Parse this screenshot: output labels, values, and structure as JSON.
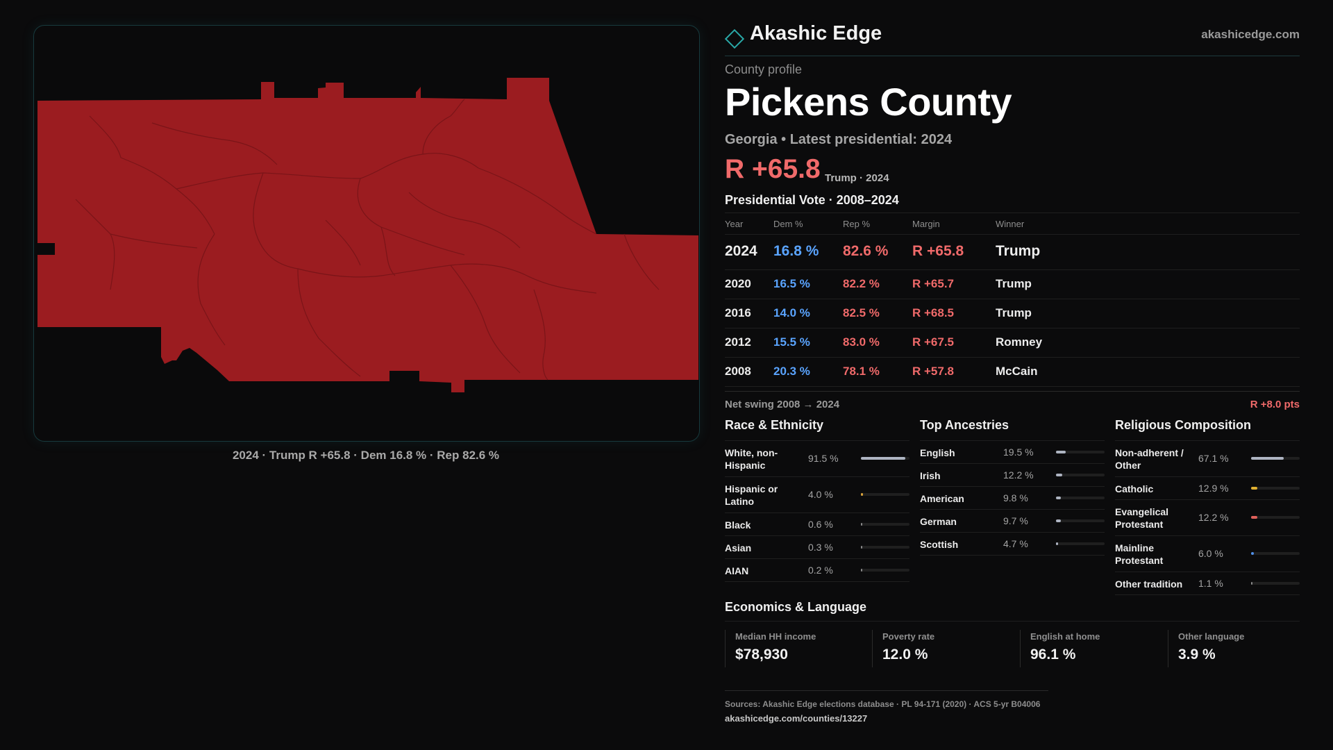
{
  "map": {
    "caption": "2024 · Trump R +65.8 · Dem 16.8 % · Rep 82.6 %",
    "fill_color": "#9b1c20"
  },
  "brand": {
    "name": "Akashic Edge",
    "url": "akashicedge.com",
    "accent": "#2aa9a8"
  },
  "profile": {
    "eyebrow": "County profile",
    "title": "Pickens County",
    "subtitle": "Georgia • Latest presidential: 2024",
    "margin": "R +65.8",
    "margin_note": "Trump · 2024"
  },
  "vote": {
    "title": "Presidential Vote · 2008–2024",
    "headers": {
      "year": "Year",
      "dem": "Dem %",
      "rep": "Rep %",
      "margin": "Margin",
      "winner": "Winner"
    },
    "rows": [
      {
        "year": "2024",
        "dem": "16.8 %",
        "rep": "82.6 %",
        "margin": "R +65.8",
        "winner": "Trump"
      },
      {
        "year": "2020",
        "dem": "16.5 %",
        "rep": "82.2 %",
        "margin": "R +65.7",
        "winner": "Trump"
      },
      {
        "year": "2016",
        "dem": "14.0 %",
        "rep": "82.5 %",
        "margin": "R +68.5",
        "winner": "Trump"
      },
      {
        "year": "2012",
        "dem": "15.5 %",
        "rep": "83.0 %",
        "margin": "R +67.5",
        "winner": "Romney"
      },
      {
        "year": "2008",
        "dem": "20.3 %",
        "rep": "78.1 %",
        "margin": "R +57.8",
        "winner": "McCain"
      }
    ],
    "swing_label": "Net swing 2008 → 2024",
    "swing_value": "R +8.0 pts"
  },
  "race": {
    "title": "Race & Ethnicity",
    "items": [
      {
        "label": "White, non-Hispanic",
        "pct": "91.5 %",
        "frac": 0.915,
        "color": "#aeb4c2",
        "tall": true
      },
      {
        "label": "Hispanic or Latino",
        "pct": "4.0 %",
        "frac": 0.04,
        "color": "#d9a23a",
        "tall": true
      },
      {
        "label": "Black",
        "pct": "0.6 %",
        "frac": 0.006,
        "color": "#8a8a8a",
        "tall": false
      },
      {
        "label": "Asian",
        "pct": "0.3 %",
        "frac": 0.003,
        "color": "#8a8a8a",
        "tall": false
      },
      {
        "label": "AIAN",
        "pct": "0.2 %",
        "frac": 0.002,
        "color": "#8a8a8a",
        "tall": false
      }
    ]
  },
  "ancestry": {
    "title": "Top Ancestries",
    "items": [
      {
        "label": "English",
        "pct": "19.5 %",
        "frac": 0.195,
        "color": "#aeb4c2",
        "tall": false
      },
      {
        "label": "Irish",
        "pct": "12.2 %",
        "frac": 0.122,
        "color": "#aeb4c2",
        "tall": false
      },
      {
        "label": "American",
        "pct": "9.8 %",
        "frac": 0.098,
        "color": "#aeb4c2",
        "tall": false
      },
      {
        "label": "German",
        "pct": "9.7 %",
        "frac": 0.097,
        "color": "#aeb4c2",
        "tall": false
      },
      {
        "label": "Scottish",
        "pct": "4.7 %",
        "frac": 0.047,
        "color": "#aeb4c2",
        "tall": false
      }
    ]
  },
  "religion": {
    "title": "Religious Composition",
    "items": [
      {
        "label": "Non-adherent / Other",
        "pct": "67.1 %",
        "frac": 0.671,
        "color": "#aeb4c2",
        "tall": true
      },
      {
        "label": "Catholic",
        "pct": "12.9 %",
        "frac": 0.129,
        "color": "#e0b030",
        "tall": false
      },
      {
        "label": "Evangelical Protestant",
        "pct": "12.2 %",
        "frac": 0.122,
        "color": "#e0605a",
        "tall": true
      },
      {
        "label": "Mainline Protestant",
        "pct": "6.0 %",
        "frac": 0.06,
        "color": "#4f8fe8",
        "tall": true
      },
      {
        "label": "Other tradition",
        "pct": "1.1 %",
        "frac": 0.011,
        "color": "#8a8a8a",
        "tall": false
      }
    ]
  },
  "economics": {
    "title": "Economics & Language",
    "cells": [
      {
        "label": "Median HH income",
        "value": "$78,930"
      },
      {
        "label": "Poverty rate",
        "value": "12.0 %"
      },
      {
        "label": "English at home",
        "value": "96.1 %"
      },
      {
        "label": "Other language",
        "value": "3.9 %"
      }
    ]
  },
  "sources": {
    "line": "Sources: Akashic Edge elections database · PL 94-171 (2020) · ACS 5-yr B04006",
    "url": "akashicedge.com/counties/13227"
  }
}
